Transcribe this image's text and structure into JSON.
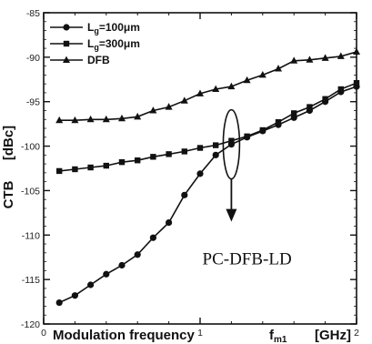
{
  "chart_data": {
    "type": "line",
    "xlabel": "Modulation frequency",
    "xlabel_symbol": "f",
    "xlabel_subscript": "m1",
    "xlabel_unit": "[GHz]",
    "ylabel": "CTB",
    "ylabel_unit": "[dBc]",
    "xlim": [
      0,
      2
    ],
    "ylim": [
      -120,
      -85
    ],
    "x_ticks": [
      0,
      1,
      2
    ],
    "x_tick_labels": [
      "0",
      "1",
      "2"
    ],
    "y_ticks": [
      -120,
      -115,
      -110,
      -105,
      -100,
      -95,
      -90,
      -85
    ],
    "y_tick_labels": [
      "-120",
      "-115",
      "-110",
      "-105",
      "-100",
      "-95",
      "-90",
      "-85"
    ],
    "grid": false,
    "legend_position": "top-left",
    "series": [
      {
        "name": "Lg=100μm",
        "legend_base": "L",
        "legend_sub": "g",
        "legend_rest": "=100μm",
        "marker": "circle",
        "x": [
          0.1,
          0.2,
          0.3,
          0.4,
          0.5,
          0.6,
          0.7,
          0.8,
          0.9,
          1.0,
          1.1,
          1.2,
          1.3,
          1.4,
          1.5,
          1.6,
          1.7,
          1.8,
          1.9,
          2.0
        ],
        "y": [
          -117.6,
          -116.8,
          -115.6,
          -114.4,
          -113.4,
          -112.2,
          -110.3,
          -108.6,
          -105.5,
          -103.1,
          -101.0,
          -99.8,
          -99.0,
          -98.3,
          -97.6,
          -96.8,
          -96.0,
          -95.0,
          -93.9,
          -93.3
        ]
      },
      {
        "name": "Lg=300μm",
        "legend_base": "L",
        "legend_sub": "g",
        "legend_rest": "=300μm",
        "marker": "square",
        "x": [
          0.1,
          0.2,
          0.3,
          0.4,
          0.5,
          0.6,
          0.7,
          0.8,
          0.9,
          1.0,
          1.1,
          1.2,
          1.3,
          1.4,
          1.5,
          1.6,
          1.7,
          1.8,
          1.9,
          2.0
        ],
        "y": [
          -102.8,
          -102.6,
          -102.4,
          -102.2,
          -101.8,
          -101.6,
          -101.2,
          -100.9,
          -100.6,
          -100.2,
          -99.9,
          -99.4,
          -98.9,
          -98.2,
          -97.3,
          -96.3,
          -95.6,
          -94.7,
          -93.6,
          -92.9
        ]
      },
      {
        "name": "DFB",
        "legend_base": "DFB",
        "legend_sub": "",
        "legend_rest": "",
        "marker": "triangle",
        "x": [
          0.1,
          0.2,
          0.3,
          0.4,
          0.5,
          0.6,
          0.7,
          0.8,
          0.9,
          1.0,
          1.1,
          1.2,
          1.3,
          1.4,
          1.5,
          1.6,
          1.7,
          1.8,
          1.9,
          2.0
        ],
        "y": [
          -97.1,
          -97.1,
          -97.0,
          -97.0,
          -96.9,
          -96.7,
          -96.0,
          -95.6,
          -94.9,
          -94.1,
          -93.6,
          -93.3,
          -92.6,
          -92.0,
          -91.3,
          -90.4,
          -90.3,
          -90.1,
          -89.9,
          -89.4
        ]
      }
    ],
    "annotations": [
      {
        "text": "PC-DFB-LD",
        "shape": "ellipse-with-arrow",
        "ellipse_center": [
          1.2,
          -99.8
        ],
        "arrow_to": [
          1.2,
          -108.5
        ],
        "label_at": [
          1.3,
          -113.3
        ]
      }
    ]
  },
  "colors": {
    "ink": "#111111",
    "background": "#ffffff"
  }
}
